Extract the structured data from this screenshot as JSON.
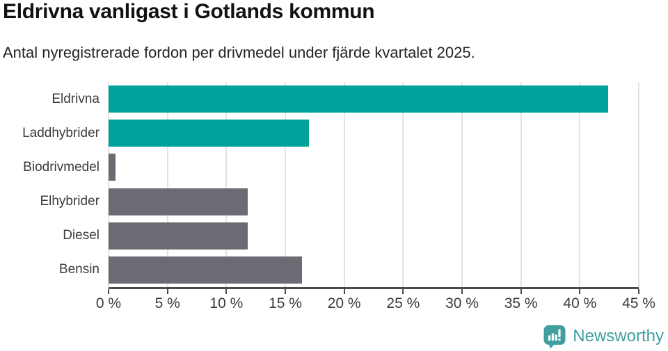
{
  "header": {
    "title": "Eldrivna vanligast i Gotlands kommun",
    "subtitle": "Antal nyregistrerade fordon per drivmedel under fjärde kvartalet 2025."
  },
  "chart_data": {
    "type": "bar",
    "orientation": "horizontal",
    "title": "Eldrivna vanligast i Gotlands kommun",
    "subtitle": "Antal nyregistrerade fordon per drivmedel under fjärde kvartalet 2025.",
    "xlabel": "",
    "ylabel": "",
    "unit": "%",
    "categories": [
      "Eldrivna",
      "Laddhybrider",
      "Biodrivmedel",
      "Elhybrider",
      "Diesel",
      "Bensin"
    ],
    "values": [
      42.4,
      17.0,
      0.6,
      11.8,
      11.8,
      16.4
    ],
    "bar_colors": [
      "#00a29b",
      "#00a29b",
      "#6c6a73",
      "#6c6a73",
      "#6c6a73",
      "#6c6a73"
    ],
    "xlim": [
      0,
      45
    ],
    "x_tick_values": [
      0,
      5,
      10,
      15,
      20,
      25,
      30,
      35,
      40,
      45
    ],
    "x_tick_labels": [
      "0 %",
      "5 %",
      "10 %",
      "15 %",
      "20 %",
      "25 %",
      "30 %",
      "35 %",
      "40 %",
      "45 %"
    ],
    "grid": true,
    "legend": false
  },
  "colors": {
    "highlight": "#00a29b",
    "muted": "#6c6a73",
    "axis": "#4a4a4a",
    "gridline": "#e3e3e3",
    "tick_text": "#3b3b3b",
    "brand": "#3f9f9f"
  },
  "footer": {
    "brand_label": "Newsworthy"
  }
}
